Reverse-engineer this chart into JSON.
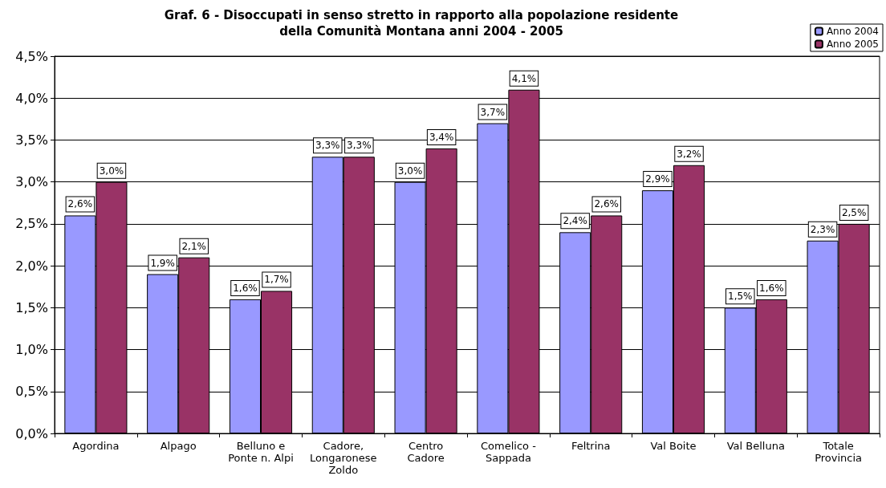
{
  "chart_data": {
    "type": "bar",
    "title": "Graf. 6 - Disoccupati in senso stretto in rapporto alla popolazione residente\ndella Comunità Montana anni 2004 - 2005",
    "categories": [
      "Agordina",
      "Alpago",
      "Belluno e\nPonte n. Alpi",
      "Cadore,\nLongaronese\nZoldo",
      "Centro\nCadore",
      "Comelico -\nSappada",
      "Feltrina",
      "Val Boite",
      "Val Belluna",
      "Totale\nProvincia"
    ],
    "series": [
      {
        "name": "Anno 2004",
        "color": "#9999ff",
        "values": [
          2.6,
          1.9,
          1.6,
          3.3,
          3.0,
          3.7,
          2.4,
          2.9,
          1.5,
          2.3
        ],
        "value_labels": [
          "2,6%",
          "1,9%",
          "1,6%",
          "3,3%",
          "3,0%",
          "3,7%",
          "2,4%",
          "2,9%",
          "1,5%",
          "2,3%"
        ]
      },
      {
        "name": "Anno 2005",
        "color": "#993366",
        "values": [
          3.0,
          2.1,
          1.7,
          3.3,
          3.4,
          4.1,
          2.6,
          3.2,
          1.6,
          2.5
        ],
        "value_labels": [
          "3,0%",
          "2,1%",
          "1,7%",
          "3,3%",
          "3,4%",
          "4,1%",
          "2,6%",
          "3,2%",
          "1,6%",
          "2,5%"
        ]
      }
    ],
    "ylim": [
      0,
      4.5
    ],
    "yticks": [
      {
        "value": 0,
        "label": "0,0%"
      },
      {
        "value": 0.5,
        "label": "0,5%"
      },
      {
        "value": 1,
        "label": "1,0%"
      },
      {
        "value": 1.5,
        "label": "1,5%"
      },
      {
        "value": 2,
        "label": "2,0%"
      },
      {
        "value": 2.5,
        "label": "2,5%"
      },
      {
        "value": 3,
        "label": "3,0%"
      },
      {
        "value": 3.5,
        "label": "3,5%"
      },
      {
        "value": 4,
        "label": "4,0%"
      },
      {
        "value": 4.5,
        "label": "4,5%"
      }
    ],
    "grid": "y",
    "legend": "top right"
  }
}
